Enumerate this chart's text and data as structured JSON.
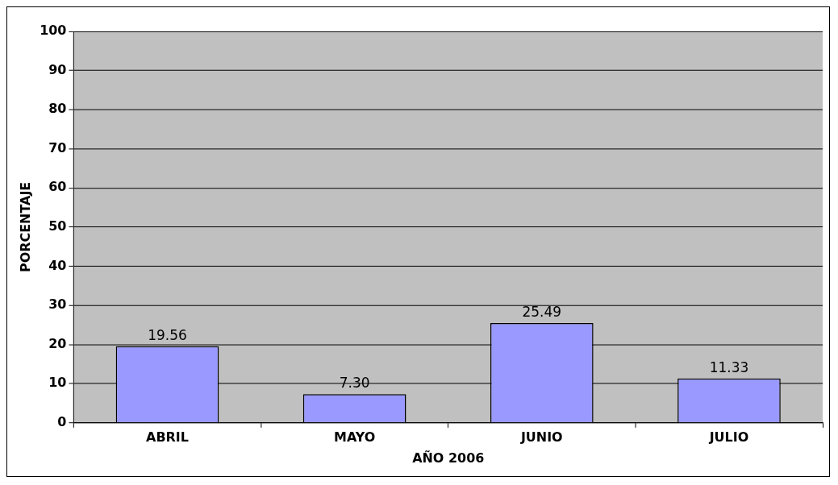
{
  "chart_data": {
    "type": "bar",
    "xlabel": "AÑO 2006",
    "ylabel": "PORCENTAJE",
    "categories": [
      "ABRIL",
      "MAYO",
      "JUNIO",
      "JULIO"
    ],
    "values": [
      19.56,
      7.3,
      25.49,
      11.33
    ],
    "value_labels": [
      "19.56",
      "7.30",
      "25.49",
      "11.33"
    ],
    "color": "#9999ff",
    "ylim": [
      0,
      100
    ],
    "yticks": [
      0,
      10,
      20,
      30,
      40,
      50,
      60,
      70,
      80,
      90,
      100
    ],
    "grid": "y",
    "legend": false
  }
}
